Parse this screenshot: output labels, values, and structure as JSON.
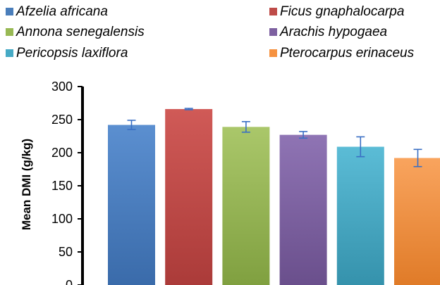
{
  "chart_data": {
    "type": "bar",
    "title": "",
    "xlabel": "",
    "ylabel": "Mean DMI (g/kg)",
    "ylim": [
      0,
      300
    ],
    "yticks": [
      0,
      50,
      100,
      150,
      200,
      250,
      300
    ],
    "grid": false,
    "legend_position": "top",
    "categories": [
      "Afzelia africana",
      "Ficus gnaphalocarpa",
      "Annona senegalensis",
      "Arachis hypogaea",
      "Pericopsis laxiflora",
      "Pterocarpus erinaceus"
    ],
    "values": [
      242,
      266,
      239,
      227,
      209,
      192
    ],
    "error": [
      7,
      1,
      8,
      5,
      15,
      13
    ],
    "colors": [
      "#4A7EBB",
      "#BE4B48",
      "#98B954",
      "#7D60A0",
      "#46AAC5",
      "#F69240"
    ],
    "colors_light": [
      "#5B8FD0",
      "#D05A57",
      "#AAC76A",
      "#8F74B4",
      "#5BBCD6",
      "#F9A45E"
    ],
    "colors_dark": [
      "#3A6BAA",
      "#AB3B39",
      "#80A040",
      "#6A4F8C",
      "#3592AC",
      "#E07B28"
    ],
    "error_bar_color": "#3A6FC4"
  }
}
